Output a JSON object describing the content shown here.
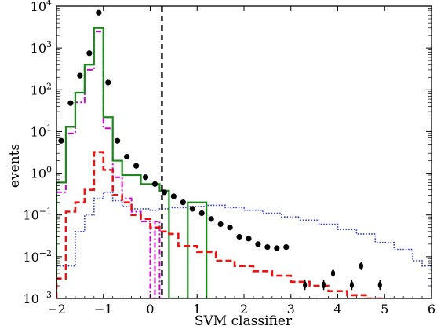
{
  "chart_data": {
    "type": "line",
    "xlabel": "SVM classifier",
    "ylabel": "events",
    "xlim": [
      -2,
      6
    ],
    "ylim": [
      0.001,
      10000
    ],
    "yscale": "log",
    "grid": false,
    "legend": "none",
    "x_ticks": [
      -2,
      -1,
      0,
      1,
      2,
      3,
      4,
      5,
      6
    ],
    "x_tick_labels": [
      "−2",
      "−1",
      "0",
      "1",
      "2",
      "3",
      "4",
      "5",
      "6"
    ],
    "y_ticks": [
      0.001,
      0.01,
      0.1,
      1,
      10,
      100,
      1000,
      10000
    ],
    "y_tick_base": "10",
    "y_tick_exponents": [
      "−3",
      "−2",
      "−1",
      "0",
      "1",
      "2",
      "3",
      "4"
    ],
    "cut_line": {
      "x": 0.25,
      "style": "dashed",
      "color": "#000000"
    },
    "series": [
      {
        "style": "solid-step",
        "color": "#1a8a1a",
        "edges": [
          -2.0,
          -1.8,
          -1.6,
          -1.4,
          -1.2,
          -1.0,
          -0.8,
          -0.6,
          -0.2,
          0.2,
          0.4,
          0.8,
          1.2
        ],
        "values": [
          0.6,
          13,
          85,
          400,
          3000,
          22,
          2,
          0.9,
          0.55,
          0.38,
          0.001,
          0.2
        ]
      },
      {
        "style": "dashdot-step",
        "color": "#cc00cc",
        "edges": [
          -2.0,
          -1.8,
          -1.6,
          -1.4,
          -1.2,
          -1.0,
          -0.8,
          -0.6,
          -0.4,
          -0.2,
          0.0,
          0.1,
          0.2,
          0.3
        ],
        "values": [
          0.35,
          9,
          50,
          300,
          2500,
          12,
          0.8,
          0.25,
          0.12,
          0.07,
          0.001,
          0.07,
          0.001
        ]
      },
      {
        "style": "dotted-step",
        "color": "#2233dd",
        "edges": [
          -2.0,
          -1.6,
          -1.4,
          -1.2,
          -1.0,
          -0.8,
          -0.6,
          -0.4,
          -0.2,
          0.0,
          0.2,
          0.4,
          0.8,
          1.2,
          1.6,
          2.0,
          2.4,
          2.8,
          3.2,
          3.6,
          4.0,
          4.4,
          4.8,
          5.2,
          5.6,
          5.8,
          6.0
        ],
        "values": [
          0.006,
          0.04,
          0.1,
          0.25,
          0.35,
          0.22,
          0.16,
          0.14,
          0.14,
          0.13,
          0.14,
          0.15,
          0.16,
          0.17,
          0.15,
          0.13,
          0.11,
          0.09,
          0.075,
          0.06,
          0.045,
          0.035,
          0.022,
          0.015,
          0.008,
          0.006
        ]
      },
      {
        "style": "dashed-step",
        "color": "#ee1111",
        "edges": [
          -2.0,
          -1.8,
          -1.6,
          -1.4,
          -1.2,
          -1.0,
          -0.8,
          -0.6,
          -0.4,
          -0.2,
          0.0,
          0.2,
          0.4,
          0.6,
          1.0,
          1.4,
          1.8,
          2.2,
          2.6,
          3.0,
          3.4,
          3.8,
          4.2,
          4.6,
          5.0
        ],
        "values": [
          0.003,
          0.12,
          0.2,
          0.4,
          3.2,
          1.2,
          0.3,
          0.2,
          0.1,
          0.08,
          0.05,
          0.04,
          0.035,
          0.018,
          0.013,
          0.008,
          0.006,
          0.0045,
          0.0035,
          0.0025,
          0.002,
          0.0015,
          0.0012,
          0.001
        ]
      },
      {
        "style": "points-with-errors",
        "color": "#000000",
        "points": [
          {
            "x": -1.9,
            "y": 6
          },
          {
            "x": -1.7,
            "y": 48
          },
          {
            "x": -1.5,
            "y": 220
          },
          {
            "x": -1.3,
            "y": 750
          },
          {
            "x": -1.1,
            "y": 7000
          },
          {
            "x": -0.9,
            "y": 150
          },
          {
            "x": -0.7,
            "y": 6
          },
          {
            "x": -0.5,
            "y": 2.5
          },
          {
            "x": -0.3,
            "y": 1.5
          },
          {
            "x": -0.1,
            "y": 0.8
          },
          {
            "x": 0.1,
            "y": 0.55
          },
          {
            "x": 0.3,
            "y": 0.35
          },
          {
            "x": 0.5,
            "y": 0.28
          },
          {
            "x": 0.7,
            "y": 0.2
          },
          {
            "x": 0.9,
            "y": 0.14
          },
          {
            "x": 1.1,
            "y": 0.11
          },
          {
            "x": 1.3,
            "y": 0.08
          },
          {
            "x": 1.5,
            "y": 0.06
          },
          {
            "x": 1.7,
            "y": 0.05
          },
          {
            "x": 1.9,
            "y": 0.03
          },
          {
            "x": 2.1,
            "y": 0.027
          },
          {
            "x": 2.3,
            "y": 0.02
          },
          {
            "x": 2.5,
            "y": 0.017
          },
          {
            "x": 2.7,
            "y": 0.016
          },
          {
            "x": 2.9,
            "y": 0.017
          },
          {
            "x": 3.3,
            "y": 0.0021,
            "err": [
              0.0016,
              0.0028
            ]
          },
          {
            "x": 3.7,
            "y": 0.0021,
            "err": [
              0.0016,
              0.0028
            ]
          },
          {
            "x": 3.9,
            "y": 0.004,
            "err": [
              0.0033,
              0.005
            ]
          },
          {
            "x": 4.3,
            "y": 0.0021,
            "err": [
              0.0016,
              0.0028
            ]
          },
          {
            "x": 4.5,
            "y": 0.006,
            "err": [
              0.0048,
              0.0076
            ]
          },
          {
            "x": 4.9,
            "y": 0.0021,
            "err": [
              0.0016,
              0.0028
            ]
          }
        ]
      }
    ]
  }
}
